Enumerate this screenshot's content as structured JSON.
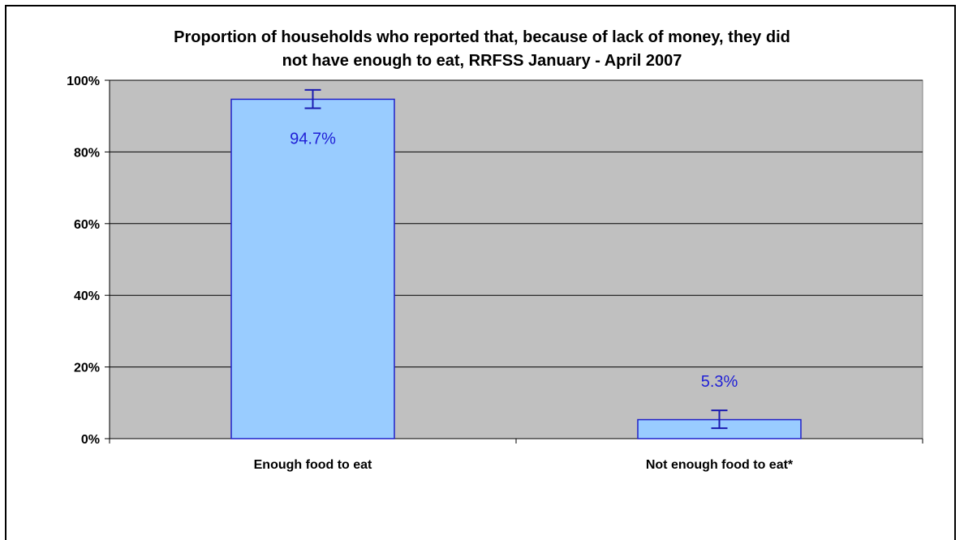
{
  "chart_data": {
    "type": "bar",
    "title_lines": [
      "Proportion of households who reported that, because of lack of money, they did",
      "not have enough to eat, RRFSS January - April 2007"
    ],
    "categories": [
      "Enough food to eat",
      "Not enough food to eat*"
    ],
    "values": [
      94.7,
      5.3
    ],
    "data_labels": [
      "94.7%",
      "5.3%"
    ],
    "error_bars": [
      {
        "low": 92.2,
        "high": 97.3
      },
      {
        "low": 2.9,
        "high": 7.9
      }
    ],
    "ylim": [
      0,
      100
    ],
    "yticks": [
      0,
      20,
      40,
      60,
      80,
      100
    ],
    "ytick_labels": [
      "0%",
      "20%",
      "40%",
      "60%",
      "80%",
      "100%"
    ],
    "xlabel": "",
    "ylabel": "",
    "grid": true,
    "legend": "none",
    "colors": {
      "plot_background": "#c0c0c0",
      "bar_fill": "#99ccff",
      "bar_border": "#2020c8",
      "error_bar": "#1a1ab0",
      "data_label": "#1f1fd6",
      "gridline": "#000000"
    }
  }
}
